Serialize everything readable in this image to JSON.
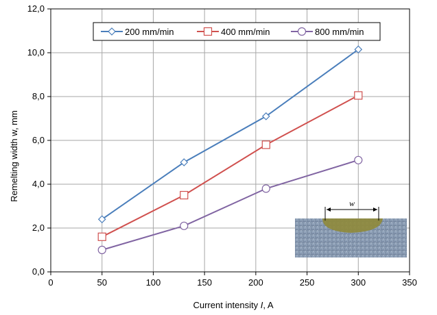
{
  "chart_data": {
    "type": "line",
    "xlabel_prefix": "Current intensity ",
    "xlabel_var": "I",
    "xlabel_suffix": ", A",
    "ylabel": "Remelting width w, mm",
    "xlim": [
      0,
      350
    ],
    "ylim": [
      0,
      12
    ],
    "x_ticks": [
      0,
      50,
      100,
      150,
      200,
      250,
      300,
      350
    ],
    "y_ticks": [
      0,
      2,
      4,
      6,
      8,
      10,
      12
    ],
    "y_tick_labels": [
      "0,0",
      "2,0",
      "4,0",
      "6,0",
      "8,0",
      "10,0",
      "12,0"
    ],
    "x_tick_labels": [
      "0",
      "50",
      "100",
      "150",
      "200",
      "250",
      "300",
      "350"
    ],
    "grid": true,
    "legend_position": "top",
    "series": [
      {
        "name": "200 mm/min",
        "color": "#4a7ebb",
        "marker": "diamond",
        "x": [
          50,
          130,
          210,
          300
        ],
        "y": [
          2.4,
          5.0,
          7.1,
          10.15
        ]
      },
      {
        "name": "400 mm/min",
        "color": "#d0504e",
        "marker": "square",
        "x": [
          50,
          130,
          210,
          300
        ],
        "y": [
          1.6,
          3.5,
          5.8,
          8.05
        ]
      },
      {
        "name": "800 mm/min",
        "color": "#8064a2",
        "marker": "circle",
        "x": [
          50,
          130,
          210,
          300
        ],
        "y": [
          1.0,
          2.1,
          3.8,
          5.1
        ]
      }
    ],
    "inset": {
      "label": "w"
    }
  }
}
